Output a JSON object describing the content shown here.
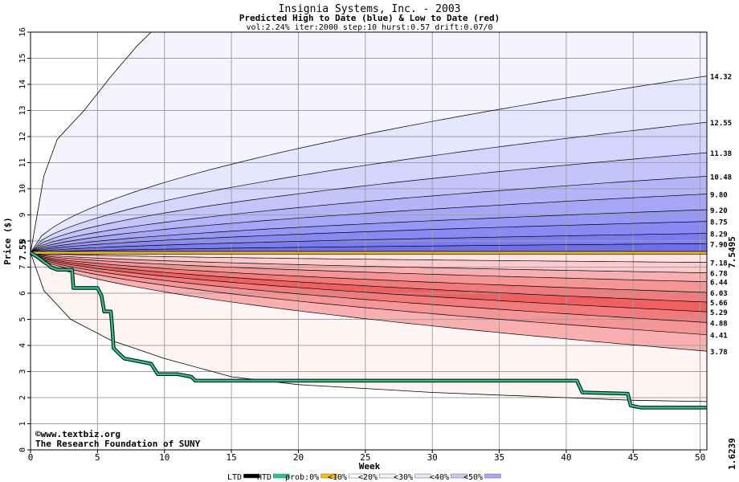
{
  "chart_data": {
    "type": "area",
    "title": "Insignia Systems, Inc. - 2003",
    "subtitle": "Predicted High to Date (blue) &  Low to Date (red)",
    "params": "vol:2.24% iter:2000 step:10 hurst:0.57 drift:0.07/0",
    "xlabel": "Week",
    "ylabel": "Price ($)",
    "xlim": [
      0,
      50.5
    ],
    "ylim": [
      0,
      16
    ],
    "x_ticks": [
      0,
      5,
      10,
      15,
      20,
      25,
      30,
      35,
      40,
      45,
      50
    ],
    "y_ticks": [
      0,
      1,
      2,
      3,
      4,
      5,
      6,
      7,
      8,
      9,
      10,
      11,
      12,
      13,
      14,
      15,
      16
    ],
    "grid": true,
    "start_price_label": "7.55",
    "start_price": 7.55,
    "current_price_label": "7.5495",
    "current_price": 7.5495,
    "final_low_label": "1.6239",
    "final_low": 1.6239,
    "high_bands": [
      {
        "end_label": "7.90",
        "end": 7.9
      },
      {
        "end_label": "8.29",
        "end": 8.29
      },
      {
        "end_label": "8.75",
        "end": 8.75
      },
      {
        "end_label": "9.20",
        "end": 9.2
      },
      {
        "end_label": "9.80",
        "end": 9.8
      },
      {
        "end_label": "10.48",
        "end": 10.48
      },
      {
        "end_label": "11.38",
        "end": 11.38
      },
      {
        "end_label": "12.55",
        "end": 12.55
      },
      {
        "end_label": "14.32",
        "end": 14.32
      }
    ],
    "low_bands": [
      {
        "end_label": "7.18",
        "end": 7.18
      },
      {
        "end_label": "6.78",
        "end": 6.78
      },
      {
        "end_label": "6.44",
        "end": 6.44
      },
      {
        "end_label": "6.03",
        "end": 6.03
      },
      {
        "end_label": "5.66",
        "end": 5.66
      },
      {
        "end_label": "5.29",
        "end": 5.29
      },
      {
        "end_label": "4.88",
        "end": 4.88
      },
      {
        "end_label": "4.41",
        "end": 4.41
      },
      {
        "end_label": "3.78",
        "end": 3.78
      }
    ],
    "outer_high_curve": [
      [
        0,
        7.55
      ],
      [
        1,
        10.5
      ],
      [
        2,
        11.9
      ],
      [
        4,
        13.0
      ],
      [
        6,
        14.3
      ],
      [
        8,
        15.5
      ],
      [
        9,
        16
      ]
    ],
    "outer_low_curve": [
      [
        0,
        7.55
      ],
      [
        1,
        6.1
      ],
      [
        3,
        5.0
      ],
      [
        6,
        4.2
      ],
      [
        10,
        3.5
      ],
      [
        15,
        2.8
      ],
      [
        20,
        2.5
      ],
      [
        25,
        2.35
      ],
      [
        30,
        2.2
      ],
      [
        35,
        2.1
      ],
      [
        40,
        2.0
      ],
      [
        45,
        1.9
      ],
      [
        50.5,
        1.85
      ]
    ],
    "htd_line": [
      [
        0,
        7.55
      ],
      [
        0.5,
        7.4
      ],
      [
        1,
        7.2
      ],
      [
        1.3,
        7.1
      ],
      [
        1.5,
        7.0
      ],
      [
        2,
        6.9
      ],
      [
        3.1,
        6.9
      ],
      [
        3.2,
        6.2
      ],
      [
        5,
        6.2
      ],
      [
        5.3,
        5.9
      ],
      [
        5.5,
        5.3
      ],
      [
        6,
        5.3
      ],
      [
        6.1,
        4.7
      ],
      [
        6.2,
        3.9
      ],
      [
        6.6,
        3.7
      ],
      [
        7,
        3.5
      ],
      [
        8,
        3.4
      ],
      [
        9,
        3.3
      ],
      [
        9.5,
        2.9
      ],
      [
        11,
        2.9
      ],
      [
        12,
        2.8
      ],
      [
        12.3,
        2.65
      ],
      [
        40.8,
        2.65
      ],
      [
        41.2,
        2.2
      ],
      [
        44.6,
        2.15
      ],
      [
        44.8,
        1.7
      ],
      [
        45.6,
        1.62
      ],
      [
        50.5,
        1.62
      ]
    ],
    "ltd_line": [
      [
        0,
        7.55
      ],
      [
        50.5,
        7.55
      ]
    ],
    "legend": [
      {
        "label": "LTD",
        "color": "#000000"
      },
      {
        "label": "HTD",
        "color": "#20c890"
      },
      {
        "label": "prob:0%",
        "color": "#ffc000"
      },
      {
        "label": "<10%",
        "color": "#ffffff"
      },
      {
        "label": "<20%",
        "color": "#f0f0ff"
      },
      {
        "label": "<30%",
        "color": "#e6e6ff"
      },
      {
        "label": "<40%",
        "color": "#c8c8ff"
      },
      {
        "label": "<50%",
        "color": "#a8a8ff"
      }
    ],
    "credits": [
      "©www.textbiz.org",
      "The Research Foundation of SUNY"
    ],
    "colors": {
      "grid": "#a0a0a0",
      "htd": "#20c890",
      "price": "#ffc000",
      "blue_dark": "#6e6ef0",
      "red_dark": "#f06060",
      "label_gold": "#a08000",
      "label_green": "#109060"
    }
  }
}
